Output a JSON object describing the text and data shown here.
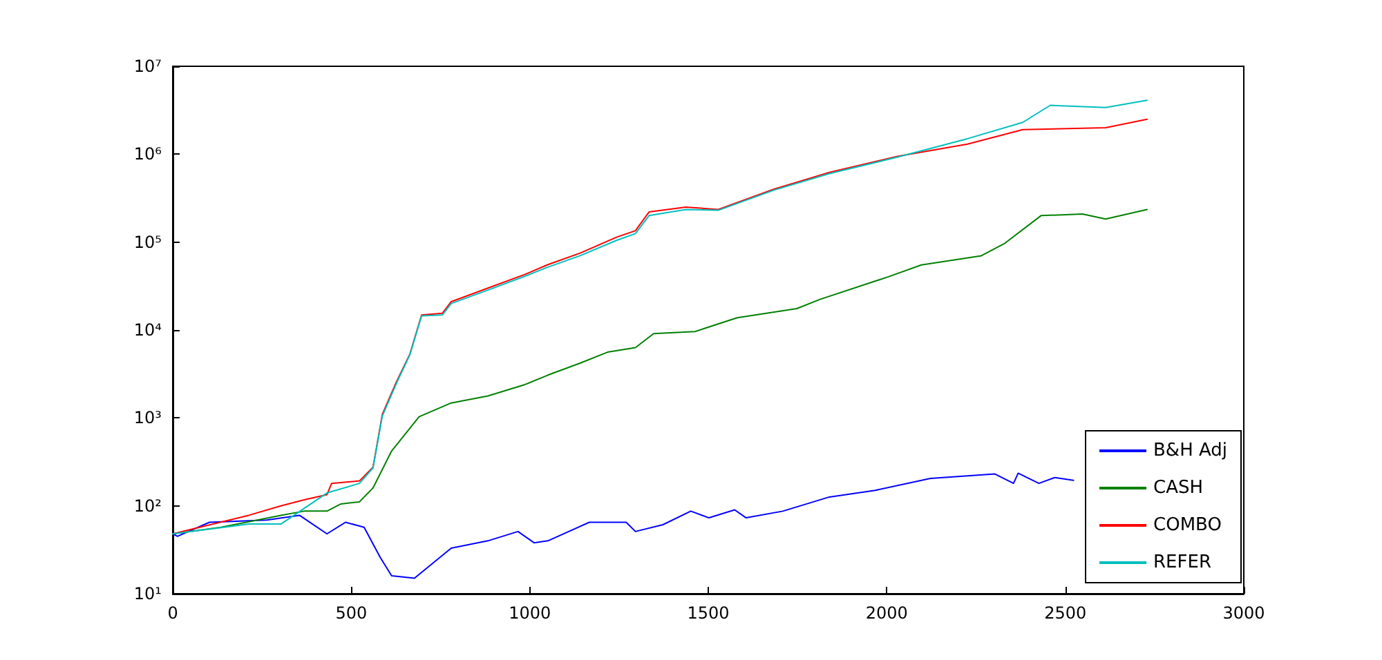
{
  "chart_data": {
    "type": "line",
    "log": "y",
    "grid": false,
    "legend": "bottom right",
    "marker": "none",
    "line_style": "solid",
    "xlim": [
      0,
      3000
    ],
    "xticks": [
      0,
      500,
      1000,
      1500,
      2000,
      2500,
      3000
    ],
    "ylim": [
      10,
      10000000
    ],
    "yticks": [
      {
        "value": 10,
        "label": "10¹"
      },
      {
        "value": 100,
        "label": "10²"
      },
      {
        "value": 1000,
        "label": "10³"
      },
      {
        "value": 10000,
        "label": "10⁴"
      },
      {
        "value": 100000,
        "label": "10⁵"
      },
      {
        "value": 1000000,
        "label": "10⁶"
      },
      {
        "value": 10000000,
        "label": "10⁷"
      }
    ],
    "series": [
      {
        "name": "B&H Adj",
        "color": "#0000ff",
        "x": [
          0,
          13,
          103,
          264,
          355,
          432,
          484,
          536,
          581,
          613,
          677,
          780,
          883,
          967,
          1012,
          1051,
          1167,
          1270,
          1296,
          1373,
          1451,
          1502,
          1574,
          1606,
          1709,
          1839,
          1968,
          2122,
          2303,
          2355,
          2368,
          2426,
          2471,
          2523
        ],
        "values": [
          48,
          45,
          65,
          69,
          78,
          48,
          65,
          57,
          26,
          16,
          15,
          33,
          40,
          51,
          38,
          40,
          65,
          65,
          51,
          61,
          87,
          73,
          90,
          73,
          87,
          126,
          150,
          205,
          230,
          180,
          235,
          180,
          210,
          195
        ]
      },
      {
        "name": "CASH",
        "color": "#008000",
        "x": [
          0,
          135,
          303,
          368,
          432,
          471,
          523,
          561,
          613,
          690,
          780,
          883,
          987,
          1051,
          1141,
          1218,
          1296,
          1347,
          1463,
          1581,
          1748,
          1813,
          2006,
          2097,
          2265,
          2329,
          2432,
          2548,
          2613,
          2729
        ],
        "values": [
          48,
          57,
          78,
          87,
          87,
          105,
          111,
          160,
          420,
          1030,
          1480,
          1780,
          2400,
          3070,
          4200,
          5600,
          6300,
          9100,
          9600,
          13800,
          17500,
          22300,
          40500,
          55000,
          70000,
          96000,
          200000,
          209000,
          183000,
          235000
        ]
      },
      {
        "name": "COMBO",
        "color": "#ff0000",
        "x": [
          0,
          213,
          303,
          368,
          432,
          445,
          523,
          561,
          587,
          626,
          664,
          697,
          755,
          780,
          883,
          987,
          1051,
          1141,
          1244,
          1296,
          1334,
          1437,
          1528,
          1684,
          1839,
          2032,
          2226,
          2381,
          2613,
          2729
        ],
        "values": [
          48,
          78,
          100,
          117,
          134,
          180,
          192,
          275,
          1100,
          2550,
          5300,
          14800,
          15500,
          21000,
          30000,
          43000,
          55500,
          75000,
          114000,
          135000,
          220000,
          250000,
          235000,
          400000,
          620000,
          950000,
          1300000,
          1900000,
          2000000,
          2500000
        ]
      },
      {
        "name": "REFER",
        "color": "#00bfbf",
        "x": [
          0,
          213,
          303,
          432,
          523,
          561,
          587,
          626,
          664,
          697,
          755,
          780,
          883,
          987,
          1051,
          1141,
          1244,
          1296,
          1334,
          1437,
          1528,
          1684,
          1839,
          2032,
          2226,
          2381,
          2458,
          2613,
          2729
        ],
        "values": [
          48,
          62,
          62,
          140,
          180,
          270,
          1050,
          2450,
          5200,
          14500,
          14800,
          20000,
          28500,
          41000,
          52000,
          70000,
          105000,
          125000,
          200000,
          235000,
          230000,
          390000,
          600000,
          930000,
          1500000,
          2300000,
          3600000,
          3400000,
          4100000
        ]
      }
    ]
  }
}
